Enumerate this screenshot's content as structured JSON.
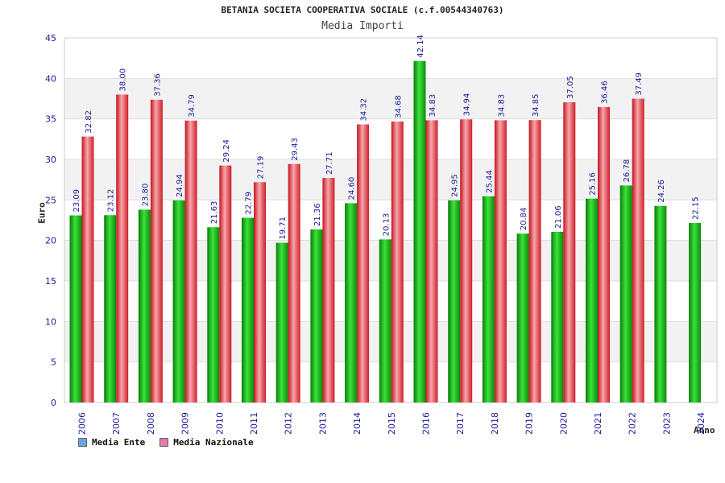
{
  "chart_data": {
    "type": "bar",
    "title": "BETANIA SOCIETA COOPERATIVA SOCIALE (c.f.00544340763)",
    "subtitle": "Media Importi",
    "xlabel": "Anno",
    "ylabel": "Euro",
    "ylim": [
      0,
      45
    ],
    "yticks": [
      0,
      5,
      10,
      15,
      20,
      25,
      30,
      35,
      40,
      45
    ],
    "grid": true,
    "legend_position": "bottom-left",
    "categories": [
      "2006",
      "2007",
      "2008",
      "2009",
      "2010",
      "2011",
      "2012",
      "2013",
      "2014",
      "2015",
      "2016",
      "2017",
      "2018",
      "2019",
      "2020",
      "2021",
      "2022",
      "2023",
      "2024"
    ],
    "series": [
      {
        "name": "Media Ente",
        "legend_color": "#6aa7e0",
        "bar_color": "#12b312",
        "values": [
          23.09,
          23.12,
          23.8,
          24.94,
          21.63,
          22.79,
          19.71,
          21.36,
          24.6,
          20.13,
          42.14,
          24.95,
          25.44,
          20.84,
          21.06,
          25.16,
          26.78,
          24.26,
          22.15
        ],
        "labels": [
          "23.09",
          "23.12",
          "23.80",
          "24.94",
          "21.63",
          "22.79",
          "19.71",
          "21.36",
          "24.60",
          "20.13",
          "42.14",
          "24.95",
          "25.44",
          "20.84",
          "21.06",
          "25.16",
          "26.78",
          "24.26",
          "22.15"
        ]
      },
      {
        "name": "Media Nazionale",
        "legend_color": "#e07aa8",
        "bar_color": "#e8303a",
        "values": [
          32.82,
          38.0,
          37.36,
          34.79,
          29.24,
          27.19,
          29.43,
          27.71,
          34.32,
          34.68,
          34.83,
          34.94,
          34.83,
          34.85,
          37.05,
          36.46,
          37.49,
          null,
          null
        ],
        "labels": [
          "32.82",
          "38.00",
          "37.36",
          "34.79",
          "29.24",
          "27.19",
          "29.43",
          "27.71",
          "34.32",
          "34.68",
          "34.83",
          "34.94",
          "34.83",
          "34.85",
          "37.05",
          "36.46",
          "37.49",
          "",
          ""
        ]
      }
    ]
  }
}
